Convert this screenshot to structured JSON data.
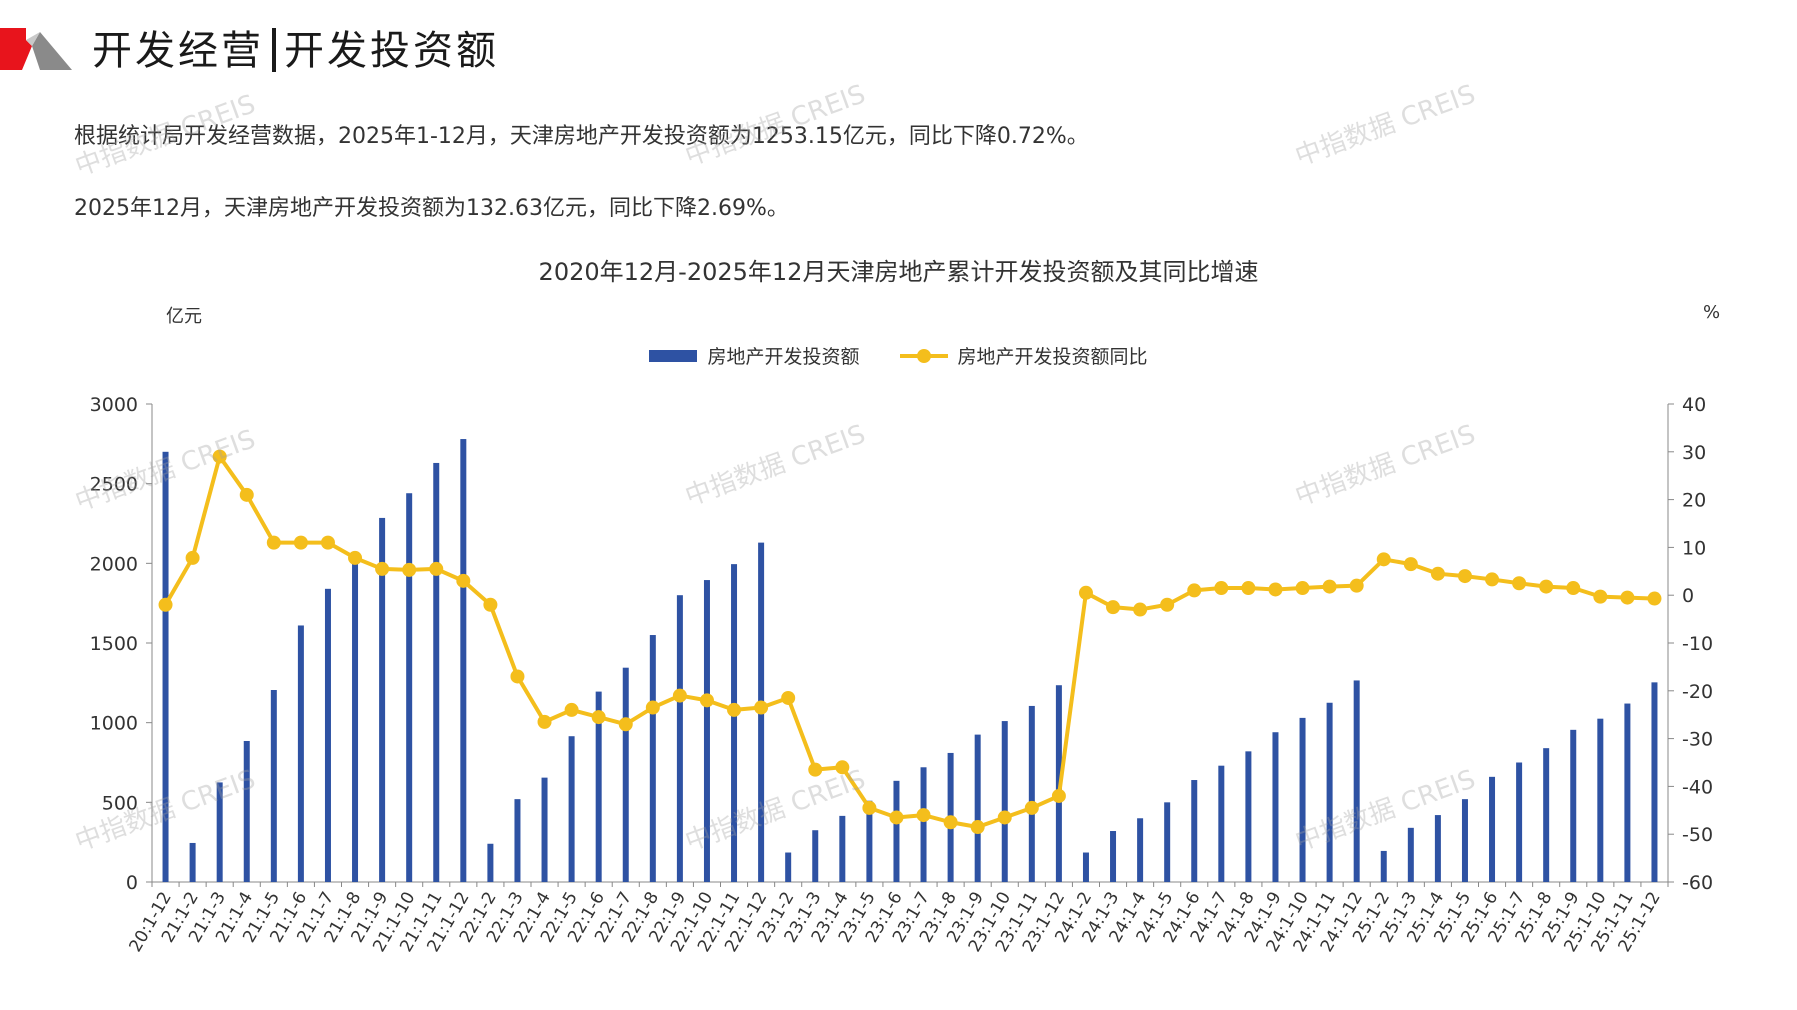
{
  "header": {
    "title_left": "开发经营",
    "title_right": "开发投资额"
  },
  "paragraphs": {
    "p1": "根据统计局开发经营数据，2025年1-12月，天津房地产开发投资额为1253.15亿元，同比下降0.72%。",
    "p2": "2025年12月，天津房地产开发投资额为132.63亿元，同比下降2.69%。"
  },
  "watermark": "中指数据 CREIS",
  "colors": {
    "bar": "#2e52a3",
    "line": "#f4be1c",
    "logo_red": "#e8141c",
    "logo_gray": "#8a8a8a"
  },
  "chart_data": {
    "type": "bar",
    "title": "2020年12月-2025年12月天津房地产累计开发投资额及其同比增速",
    "ylabel_left": "亿元",
    "ylabel_right": "%",
    "ylim_left": [
      0,
      3000
    ],
    "yticks_left": [
      0,
      500,
      1000,
      1500,
      2000,
      2500,
      3000
    ],
    "ylim_right": [
      -60,
      40
    ],
    "yticks_right": [
      -60,
      -50,
      -40,
      -30,
      -20,
      -10,
      0,
      10,
      20,
      30,
      40
    ],
    "legend_position": "top-center",
    "categories": [
      "20:1-12",
      "21:1-2",
      "21:1-3",
      "21:1-4",
      "21:1-5",
      "21:1-6",
      "21:1-7",
      "21:1-8",
      "21:1-9",
      "21:1-10",
      "21:1-11",
      "21:1-12",
      "22:1-2",
      "22:1-3",
      "22:1-4",
      "22:1-5",
      "22:1-6",
      "22:1-7",
      "22:1-8",
      "22:1-9",
      "22:1-10",
      "22:1-11",
      "22:1-12",
      "23:1-2",
      "23:1-3",
      "23:1-4",
      "23:1-5",
      "23:1-6",
      "23:1-7",
      "23:1-8",
      "23:1-9",
      "23:1-10",
      "23:1-11",
      "23:1-12",
      "24:1-2",
      "24:1-3",
      "24:1-4",
      "24:1-5",
      "24:1-6",
      "24:1-7",
      "24:1-8",
      "24:1-9",
      "24:1-10",
      "24:1-11",
      "24:1-12",
      "25:1-2",
      "25:1-3",
      "25:1-4",
      "25:1-5",
      "25:1-6",
      "25:1-7",
      "25:1-8",
      "25:1-9",
      "25:1-10",
      "25:1-11",
      "25:1-12"
    ],
    "series": [
      {
        "name": "房地产开发投资额",
        "type": "bar",
        "axis": "left",
        "values": [
          2700,
          245,
          625,
          885,
          1205,
          1610,
          1840,
          2050,
          2285,
          2440,
          2630,
          2780,
          240,
          520,
          655,
          915,
          1195,
          1345,
          1550,
          1800,
          1895,
          1995,
          2130,
          185,
          325,
          415,
          510,
          635,
          720,
          810,
          925,
          1010,
          1105,
          1235,
          185,
          320,
          400,
          500,
          640,
          730,
          820,
          940,
          1030,
          1125,
          1265,
          195,
          340,
          420,
          520,
          660,
          750,
          840,
          955,
          1025,
          1120,
          1253
        ]
      },
      {
        "name": "房地产开发投资额同比",
        "type": "line",
        "axis": "right",
        "values": [
          -2,
          7.8,
          29,
          21,
          11,
          11,
          11,
          7.8,
          5.5,
          5.3,
          5.5,
          3,
          -2,
          -17,
          -26.5,
          -24,
          -25.5,
          -27,
          -23.5,
          -21,
          -22,
          -24,
          -23.5,
          -21.5,
          -36.5,
          -36,
          -44.5,
          -46.5,
          -46,
          -47.5,
          -48.5,
          -46.5,
          -44.5,
          -42,
          0.5,
          -2.5,
          -3,
          -2,
          1,
          1.5,
          1.5,
          1.2,
          1.5,
          1.8,
          2,
          7.5,
          6.5,
          4.5,
          4,
          3.3,
          2.5,
          1.8,
          1.5,
          -0.3,
          -0.5,
          -0.7
        ]
      }
    ]
  }
}
